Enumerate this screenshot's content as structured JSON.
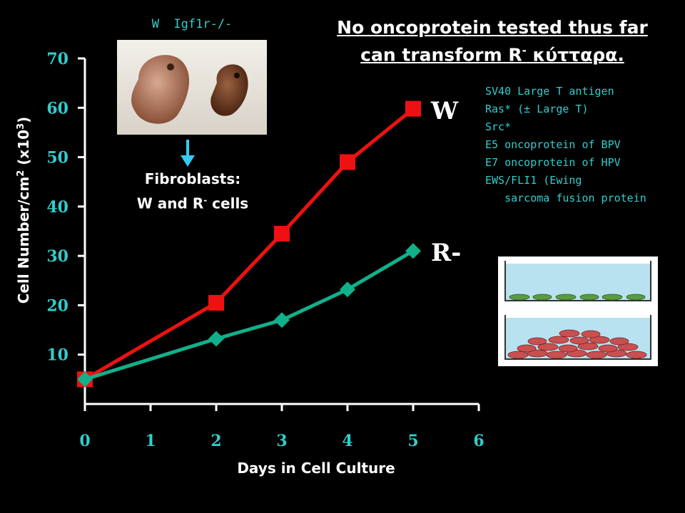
{
  "chart_data": {
    "type": "line",
    "x": [
      0,
      2,
      3,
      4,
      5
    ],
    "xlabel": "Days in Cell Culture",
    "ylabel_parts": [
      "Cell Number/cm",
      "2",
      " (x10",
      "3",
      ")"
    ],
    "xlim": [
      0,
      6
    ],
    "ylim": [
      0,
      70
    ],
    "x_ticks": [
      "0",
      "1",
      "2",
      "3",
      "4",
      "5",
      "6"
    ],
    "y_ticks": [
      "10",
      "20",
      "30",
      "40",
      "50",
      "60",
      "70"
    ],
    "grid": false,
    "series": [
      {
        "name": "W",
        "values": [
          5,
          20.5,
          34.5,
          49,
          59.8
        ],
        "color": "#ee1111",
        "marker": "square"
      },
      {
        "name": "R-",
        "values": [
          5,
          13.2,
          17,
          23.2,
          31
        ],
        "color": "#11b08a",
        "marker": "diamond"
      }
    ],
    "axis_color": "#ffffff",
    "tick_color": "#33cccc"
  },
  "headline": {
    "line1": "No oncoprotein tested thus far",
    "line2_pre": "can transform R",
    "line2_sup": "-",
    "line2_post": " κύτταρα. "
  },
  "embryo_caption": "W  Igf1r-/-",
  "fibroblasts": {
    "line1": "Fibroblasts:",
    "line2_pre": "W and R",
    "line2_sup": "-",
    "line2_post": " cells"
  },
  "oncoproteins": [
    "SV40 Large T antigen",
    "Ras* (± Large T)",
    "Src*",
    "E5 oncoprotein of BPV",
    "E7 oncoprotein of HPV",
    "EWS/FLI1 (Ewing",
    "   sarcoma fusion protein"
  ],
  "colors": {
    "background": "#000000",
    "text_cyan": "#33cccc",
    "arrow": "#33ccee",
    "dish_water": "#b8e2f0",
    "cells_green": "#5a9a40",
    "cells_red": "#c85050"
  },
  "icons": {
    "embryo_photo": "mouse-embryos-photo",
    "arrow": "arrow-down-icon",
    "dish": "culture-dish-illustration"
  }
}
